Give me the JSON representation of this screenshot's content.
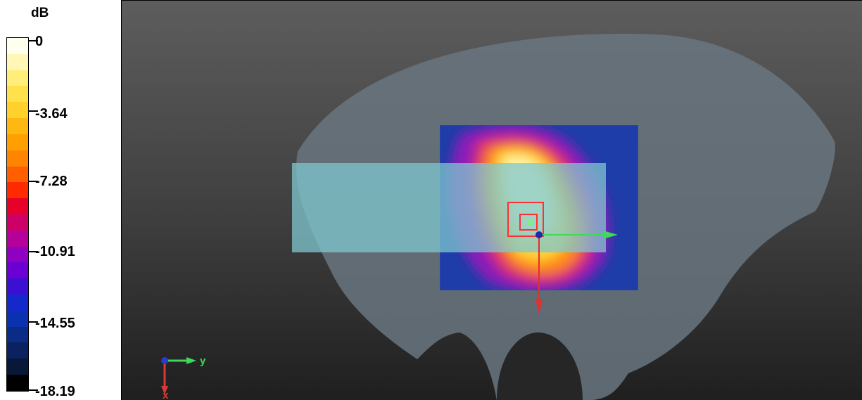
{
  "legend": {
    "unit": "dB",
    "ticks": [
      "0",
      "-3.64",
      "-7.28",
      "-10.91",
      "-14.55",
      "-18.19"
    ],
    "colors": [
      "#fffff0",
      "#fff7b5",
      "#ffef7a",
      "#ffe24b",
      "#ffd12a",
      "#ffb812",
      "#ffa000",
      "#ff8400",
      "#ff5f00",
      "#ff2a00",
      "#e6002a",
      "#cc0066",
      "#b6009a",
      "#9000c0",
      "#6a00d4",
      "#3c10d2",
      "#1428cc",
      "#0a32b0",
      "#0b2c86",
      "#0a2260",
      "#081838",
      "#000000"
    ],
    "colors_note": "top to bottom"
  },
  "viewport": {
    "background": [
      "#5d5d5d",
      "#1f1f1f"
    ],
    "phantom_color": "#66737f",
    "device_color": "#7fc7cf",
    "axis_labels": {
      "x": "x",
      "y": "y"
    },
    "axis_colors": {
      "x": "#d83a3a",
      "y": "#3fd85a",
      "z": "#2a3cc8"
    }
  }
}
